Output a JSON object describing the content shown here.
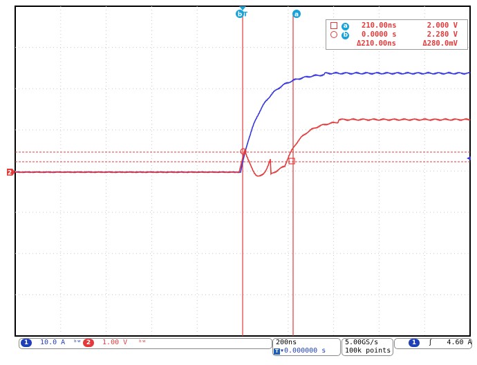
{
  "cursors": {
    "a_marker": "a",
    "b_marker": "b",
    "trigger_marker": "T"
  },
  "measurement": {
    "a_time": "210.00ns",
    "a_value": "2.000 V",
    "b_time": "0.0000 s",
    "b_value": "2.280 V",
    "delta_time": "Δ210.00ns",
    "delta_value": "Δ280.0mV"
  },
  "channels": {
    "ch1": {
      "num": "1",
      "scale": "10.0 A",
      "color": "#3535e0"
    },
    "ch2": {
      "num": "2",
      "scale": "1.00 V",
      "color": "#e23a3a"
    }
  },
  "timebase": {
    "scale": "200ns",
    "position": "▾0.000000 s"
  },
  "acquisition": {
    "rate": "5.00GS/s",
    "points": "100k points"
  },
  "trigger": {
    "source": "1",
    "level": "4.60 A",
    "slope": "rising"
  },
  "ground_marker": "2"
}
